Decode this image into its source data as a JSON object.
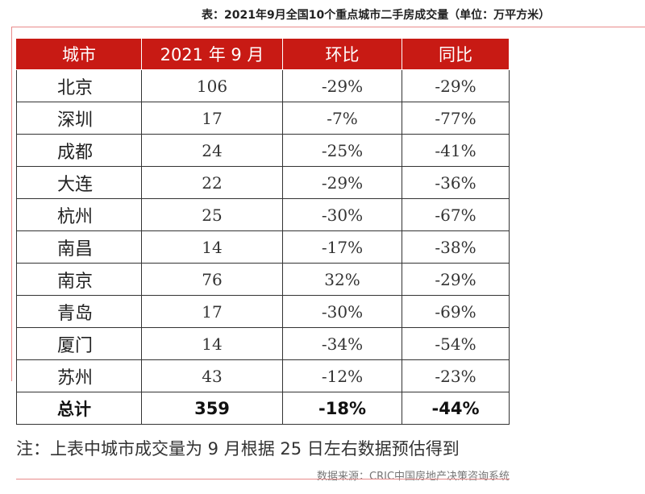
{
  "title": "表：2021年9月全国10个重点城市二手房成交量（单位：万平方米）",
  "table": {
    "headers": [
      "城市",
      "2021 年 9 月",
      "环比",
      "同比"
    ],
    "rows": [
      [
        "北京",
        "106",
        "-29%",
        "-29%"
      ],
      [
        "深圳",
        "17",
        "-7%",
        "-77%"
      ],
      [
        "成都",
        "24",
        "-25%",
        "-41%"
      ],
      [
        "大连",
        "22",
        "-29%",
        "-36%"
      ],
      [
        "杭州",
        "25",
        "-30%",
        "-67%"
      ],
      [
        "南昌",
        "14",
        "-17%",
        "-38%"
      ],
      [
        "南京",
        "76",
        "32%",
        "-29%"
      ],
      [
        "青岛",
        "17",
        "-30%",
        "-69%"
      ],
      [
        "厦门",
        "14",
        "-34%",
        "-54%"
      ],
      [
        "苏州",
        "43",
        "-12%",
        "-23%"
      ]
    ],
    "total": [
      "总计",
      "359",
      "-18%",
      "-44%"
    ]
  },
  "note": "注：上表中城市成交量为 9 月根据 25 日左右数据预估得到",
  "source": "数据来源：CRIC中国房地产决策咨询系统",
  "colors": {
    "header_bg": "#c81a14",
    "header_text": "#ffffff",
    "frame_line": "#e88a8a"
  }
}
